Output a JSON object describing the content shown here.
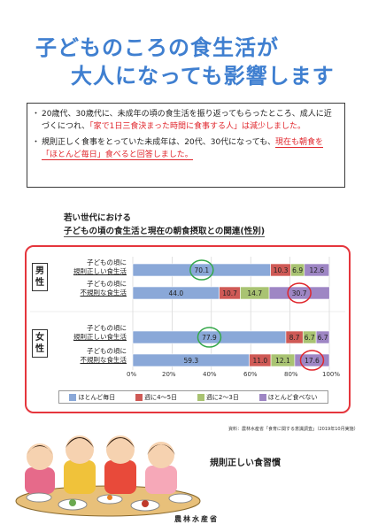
{
  "title": {
    "line1": "子どものころの食生活が",
    "line2": "大人になっても影響します"
  },
  "bullets": {
    "b1_part1": "20歳代、30歳代に、未成年の頃の食生活を振り返ってもらったところ、成人に近づくにつれ、",
    "b1_red": "「家で1日三食決まった時間に食事する人」は減少しました。",
    "b2_part1": "規則正しく食事をとっていた未成年は、20代、30代になっても、",
    "b2_red": "現在も朝食を「ほとんど毎日」食べると回答しました。"
  },
  "chart": {
    "title_line1": "若い世代における",
    "title_line2": "子どもの頃の食生活と現在の朝食摂取との関連(性別)",
    "groups": [
      {
        "label": "男性"
      },
      {
        "label": "女性"
      }
    ],
    "row_labels": {
      "regular_l1": "子どもの頃に",
      "regular_l2": "規則正しい食生活",
      "irregular_l1": "子どもの頃に",
      "irregular_l2": "不規則な食生活"
    },
    "ticks": [
      "0%",
      "20%",
      "40%",
      "60%",
      "80%",
      "100%"
    ],
    "legend": [
      "ほとんど毎日",
      "週に4～5日",
      "週に2～3日",
      "ほとんど食べない"
    ]
  },
  "chart_data": {
    "type": "bar",
    "orientation": "horizontal",
    "stacked": true,
    "categories": [
      "男性 子どもの頃に規則正しい食生活",
      "男性 子どもの頃に不規則な食生活",
      "女性 子どもの頃に規則正しい食生活",
      "女性 子どもの頃に不規則な食生活"
    ],
    "series": [
      {
        "name": "ほとんど毎日",
        "values": [
          70.1,
          44.0,
          77.9,
          59.3
        ]
      },
      {
        "name": "週に4～5日",
        "values": [
          10.3,
          10.7,
          8.7,
          11.0
        ]
      },
      {
        "name": "週に2～3日",
        "values": [
          6.9,
          14.7,
          6.7,
          12.1
        ]
      },
      {
        "name": "ほとんど食べない",
        "values": [
          12.6,
          30.7,
          6.7,
          17.6
        ]
      }
    ],
    "xlim": [
      0,
      100
    ],
    "highlighted": {
      "green": [
        [
          0,
          0
        ],
        [
          2,
          0
        ]
      ],
      "red": [
        [
          1,
          3
        ],
        [
          3,
          3
        ]
      ]
    },
    "legend_position": "bottom"
  },
  "colors": {
    "title": "#3f7fd0",
    "series": [
      "#8aa8d8",
      "#cf5a56",
      "#a9c372",
      "#9e86c4"
    ],
    "highlight_green": "#35a84a",
    "highlight_red": "#e0262c",
    "frame": "#e5363d"
  },
  "source": "資料：農林水産省「食育に関する意識調査」（2019年10月実施）",
  "habit_label": "規則正しい食習慣",
  "ministry": "農林水産省"
}
